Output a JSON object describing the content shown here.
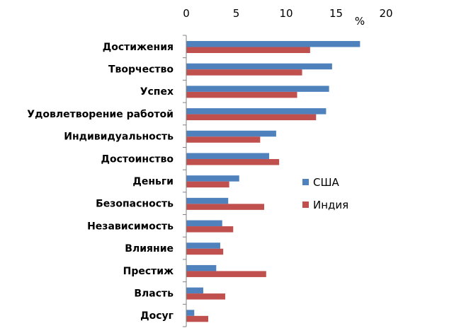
{
  "chart_data": {
    "type": "bar",
    "orientation": "horizontal",
    "title": "",
    "xlabel": "%",
    "ylabel": "",
    "xlim": [
      0,
      20
    ],
    "xticks": [
      0,
      5,
      10,
      15,
      20
    ],
    "x_axis_position": "top",
    "grid": false,
    "legend_position": "right",
    "categories": [
      "Достижения",
      "Творчество",
      "Успех",
      "Удовлетворение работой",
      "Индивидуальность",
      "Достоинство",
      "Деньги",
      "Безопасность",
      "Независимость",
      "Влияние",
      "Престиж",
      "Власть",
      "Досуг"
    ],
    "series": [
      {
        "name": "США",
        "color": "#4f81bd",
        "values": [
          17.4,
          14.6,
          14.3,
          14.0,
          9.0,
          8.3,
          5.3,
          4.2,
          3.6,
          3.4,
          3.0,
          1.7,
          0.8
        ]
      },
      {
        "name": "Индия",
        "color": "#c0504d",
        "values": [
          12.4,
          11.6,
          11.1,
          13.0,
          7.4,
          9.3,
          4.3,
          7.8,
          4.7,
          3.7,
          8.0,
          3.9,
          2.2
        ]
      }
    ]
  }
}
